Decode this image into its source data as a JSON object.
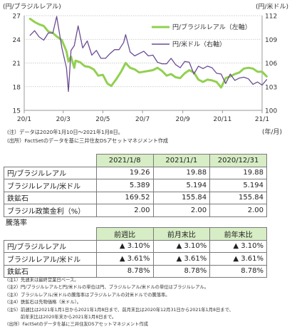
{
  "chart_data": {
    "type": "line",
    "left_axis_unit": "(円/ブラジルレアル)",
    "right_axis_unit": "(円/米ドル)",
    "x_axis_unit": "(年/月)",
    "x_ticks": [
      "20/1",
      "20/3",
      "20/5",
      "20/7",
      "20/9",
      "20/11",
      "21/1"
    ],
    "left_ylim": [
      15,
      27
    ],
    "left_ticks": [
      15,
      18,
      21,
      24,
      27
    ],
    "right_ylim": [
      100,
      112
    ],
    "right_ticks": [
      100,
      103,
      106,
      109,
      112
    ],
    "legend": [
      "円/ブラジルレアル（左軸）",
      "円/米ドル（右軸）"
    ],
    "legend_position": "top-right",
    "series": [
      {
        "name": "円/ブラジルレアル（左軸）",
        "axis": "left",
        "color": "#92d050",
        "x": [
          "2020-01-10",
          "2020-01-17",
          "2020-01-24",
          "2020-01-31",
          "2020-02-07",
          "2020-02-14",
          "2020-02-21",
          "2020-02-28",
          "2020-03-06",
          "2020-03-09",
          "2020-03-13",
          "2020-03-18",
          "2020-03-20",
          "2020-03-27",
          "2020-04-03",
          "2020-04-10",
          "2020-04-17",
          "2020-04-24",
          "2020-05-01",
          "2020-05-08",
          "2020-05-14",
          "2020-05-22",
          "2020-05-29",
          "2020-06-05",
          "2020-06-12",
          "2020-06-19",
          "2020-06-26",
          "2020-07-03",
          "2020-07-10",
          "2020-07-17",
          "2020-07-24",
          "2020-07-31",
          "2020-08-07",
          "2020-08-14",
          "2020-08-21",
          "2020-08-28",
          "2020-09-04",
          "2020-09-11",
          "2020-09-18",
          "2020-09-25",
          "2020-10-02",
          "2020-10-09",
          "2020-10-16",
          "2020-10-23",
          "2020-10-30",
          "2020-11-06",
          "2020-11-13",
          "2020-11-20",
          "2020-11-27",
          "2020-12-04",
          "2020-12-11",
          "2020-12-18",
          "2020-12-25",
          "2021-01-01",
          "2021-01-08"
        ],
        "values": [
          26.6,
          26.2,
          25.9,
          25.7,
          25.0,
          24.8,
          24.3,
          23.9,
          22.5,
          21.2,
          21.8,
          20.4,
          21.3,
          21.1,
          20.6,
          20.5,
          20.2,
          19.4,
          19.5,
          18.4,
          18.1,
          19.0,
          19.9,
          21.0,
          20.4,
          20.2,
          19.8,
          19.9,
          20.0,
          20.1,
          20.4,
          20.0,
          19.4,
          19.6,
          19.2,
          19.1,
          19.7,
          20.1,
          19.8,
          18.9,
          18.6,
          18.9,
          18.8,
          18.6,
          17.9,
          19.1,
          19.3,
          19.6,
          19.8,
          20.3,
          20.4,
          20.3,
          19.9,
          19.9,
          19.3
        ]
      },
      {
        "name": "円/米ドル（右軸）",
        "axis": "right",
        "color": "#6a4c93",
        "x": [
          "2020-01-10",
          "2020-01-17",
          "2020-01-24",
          "2020-01-31",
          "2020-02-07",
          "2020-02-14",
          "2020-02-20",
          "2020-02-28",
          "2020-03-06",
          "2020-03-09",
          "2020-03-13",
          "2020-03-18",
          "2020-03-24",
          "2020-03-31",
          "2020-04-07",
          "2020-04-14",
          "2020-04-21",
          "2020-04-28",
          "2020-05-05",
          "2020-05-12",
          "2020-05-19",
          "2020-05-26",
          "2020-06-02",
          "2020-06-05",
          "2020-06-12",
          "2020-06-19",
          "2020-06-26",
          "2020-07-03",
          "2020-07-10",
          "2020-07-17",
          "2020-07-24",
          "2020-07-31",
          "2020-08-07",
          "2020-08-14",
          "2020-08-21",
          "2020-08-28",
          "2020-09-04",
          "2020-09-11",
          "2020-09-18",
          "2020-09-25",
          "2020-10-02",
          "2020-10-09",
          "2020-10-16",
          "2020-10-23",
          "2020-10-30",
          "2020-11-06",
          "2020-11-13",
          "2020-11-20",
          "2020-11-27",
          "2020-12-04",
          "2020-12-11",
          "2020-12-18",
          "2020-12-25",
          "2021-01-01",
          "2021-01-08"
        ],
        "values": [
          109.5,
          110.1,
          109.3,
          108.9,
          109.8,
          109.8,
          111.9,
          107.9,
          105.4,
          102.4,
          107.6,
          108.2,
          110.7,
          107.9,
          108.8,
          107.0,
          107.6,
          106.6,
          106.6,
          107.2,
          107.7,
          107.7,
          108.6,
          109.6,
          107.4,
          106.9,
          107.2,
          107.5,
          106.9,
          107.0,
          106.1,
          105.9,
          105.9,
          106.6,
          105.8,
          105.4,
          106.2,
          106.1,
          104.6,
          105.6,
          105.3,
          105.6,
          105.4,
          104.7,
          104.6,
          103.4,
          104.6,
          103.8,
          104.1,
          104.2,
          104.0,
          103.3,
          103.6,
          103.2,
          103.9
        ]
      }
    ]
  },
  "chart_notes": {
    "note1": "(注）データは2020年1月10日～2021年1月8日。",
    "source1": "(出所）FactSetのデータを基に三井住友DSアセットマネジメント作成"
  },
  "table1": {
    "headers": [
      "2021/1/8",
      "2021/1/1",
      "2020/12/31"
    ],
    "rows": [
      {
        "label": "円/ブラジルレアル",
        "values": [
          "19.26",
          "19.88",
          "19.88"
        ]
      },
      {
        "label": "ブラジルレアル/米ドル",
        "values": [
          "5.389",
          "5.194",
          "5.194"
        ]
      },
      {
        "label": "鉄鉱石",
        "values": [
          "169.52",
          "155.84",
          "155.84"
        ]
      },
      {
        "label": "ブラジル政策金利（%）",
        "values": [
          "2.00",
          "2.00",
          "2.00"
        ]
      }
    ]
  },
  "table2": {
    "title": "騰落率",
    "headers": [
      "前週比",
      "前月末比",
      "前年末比"
    ],
    "rows": [
      {
        "label": "円/ブラジルレアル",
        "values": [
          "▲ 3.10%",
          "▲ 3.10%",
          "▲ 3.10%"
        ]
      },
      {
        "label": "ブラジルレアル/米ドル",
        "values": [
          "▲ 3.61%",
          "▲ 3.61%",
          "▲ 3.61%"
        ]
      },
      {
        "label": "鉄鉱石",
        "values": [
          "8.78%",
          "8.78%",
          "8.78%"
        ]
      }
    ]
  },
  "footnotes": [
    "(注1）先週末は最終営業日ベース。",
    "(注2）円/ブラジルレアルと円/米ドルの単位は円、ブラジルレアル/米ドルの単位はブラジルレアル。",
    "(注3）ブラジルレアル/米ドルの騰落率はブラジルレアルの対米ドルでの騰落率。",
    "(注4）鉄鉱石は先物価格（米ドル）。",
    "(注5）前週比は2021年1月1日から2021年1月8日まで、前月末比は2020年12月31日から2021年1月8日まで、",
    "　　　前年末比は2020年末から2021年1月8日まで。",
    "(出所）FactSetのデータを基に三井住友DSアセットマネジメント作成"
  ]
}
